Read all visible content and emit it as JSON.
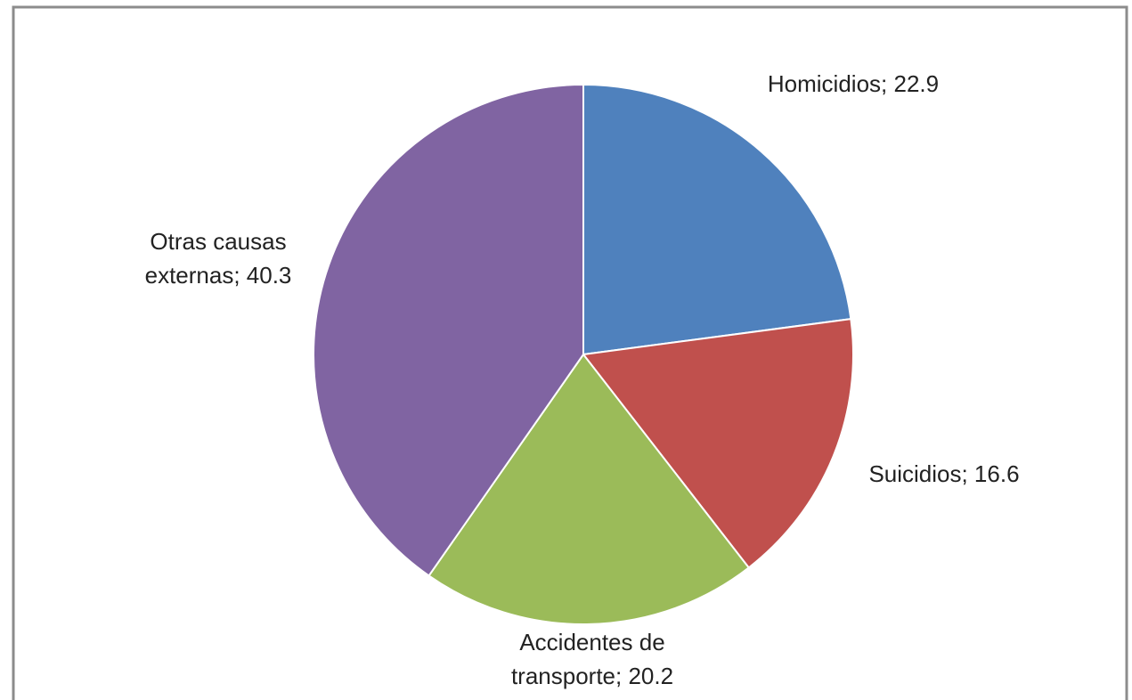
{
  "chart_data": {
    "type": "pie",
    "values": [
      22.9,
      16.6,
      20.2,
      40.3
    ],
    "value_labels": [
      "Homicidios; 22.9",
      "Suicidios; 16.6",
      "Accidentes de transporte; 20.2",
      "Otras causas externas; 40.3"
    ],
    "colors": [
      "#4f81bd",
      "#c0504d",
      "#9bbb59",
      "#8064a2"
    ]
  }
}
